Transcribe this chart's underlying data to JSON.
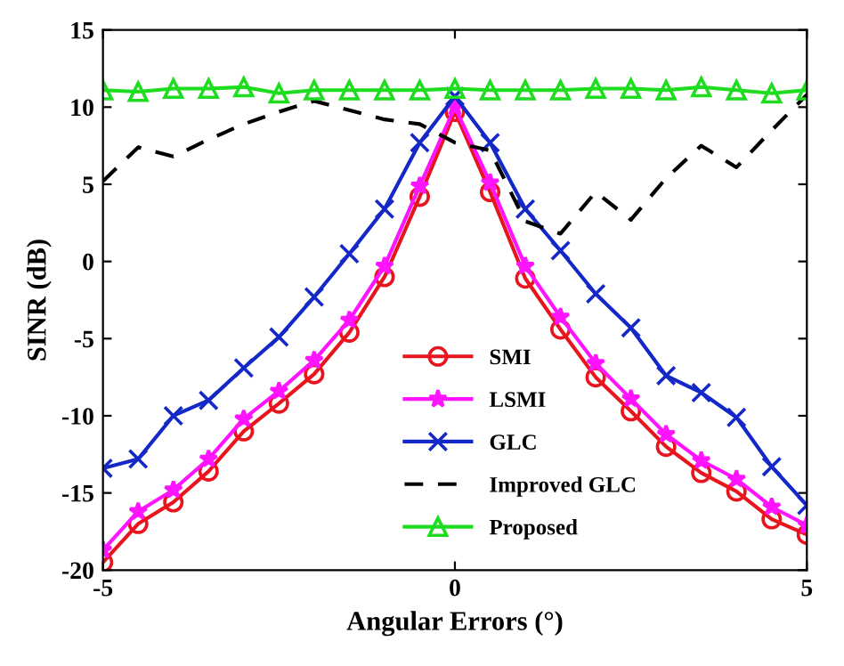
{
  "chart_data": {
    "type": "line",
    "xlabel": "Angular Errors (°)",
    "ylabel": "SINR (dB)",
    "x": [
      -5,
      -4.5,
      -4,
      -3.5,
      -3,
      -2.5,
      -2,
      -1.5,
      -1,
      -0.5,
      0,
      0.5,
      1,
      1.5,
      2,
      2.5,
      3,
      3.5,
      4,
      4.5,
      5
    ],
    "xlim": [
      -5,
      5
    ],
    "xticks": [
      -5,
      0,
      5
    ],
    "ylim": [
      -20,
      15
    ],
    "yticks": [
      -20,
      -15,
      -10,
      -5,
      0,
      5,
      10,
      15
    ],
    "grid": false,
    "legend": "bottom",
    "line_style": "solid",
    "series": [
      {
        "name": "SMI",
        "color": "#e8141e",
        "marker": "circle",
        "values": [
          -19.5,
          -17.0,
          -15.6,
          -13.6,
          -11.0,
          -9.2,
          -7.3,
          -4.6,
          -1.0,
          4.2,
          9.7,
          4.5,
          -1.1,
          -4.4,
          -7.5,
          -9.7,
          -12.0,
          -13.7,
          -14.9,
          -16.7,
          -17.7
        ]
      },
      {
        "name": "LSMI",
        "color": "#ff14ff",
        "marker": "star",
        "values": [
          -18.7,
          -16.2,
          -14.8,
          -12.8,
          -10.2,
          -8.4,
          -6.4,
          -3.8,
          -0.3,
          4.9,
          10.0,
          5.1,
          -0.3,
          -3.6,
          -6.6,
          -8.9,
          -11.2,
          -12.9,
          -14.1,
          -15.9,
          -17.1
        ]
      },
      {
        "name": "GLC",
        "color": "#1428c8",
        "marker": "cross",
        "values": [
          -13.4,
          -12.8,
          -10.0,
          -9.0,
          -6.9,
          -4.9,
          -2.3,
          0.5,
          3.4,
          7.7,
          10.7,
          7.7,
          3.4,
          0.7,
          -2.1,
          -4.3,
          -7.4,
          -8.5,
          -10.1,
          -13.3,
          -15.8
        ]
      },
      {
        "name": "Improved GLC",
        "color": "#000000",
        "marker": "none",
        "line_style": "dashed",
        "values": [
          5.2,
          7.4,
          6.8,
          7.9,
          8.9,
          9.7,
          10.4,
          9.8,
          9.2,
          8.9,
          7.7,
          7.2,
          2.6,
          1.8,
          4.5,
          2.7,
          5.4,
          7.5,
          6.1,
          8.5,
          10.8
        ]
      },
      {
        "name": "Proposed",
        "color": "#1edc1e",
        "marker": "triangle",
        "values": [
          11.1,
          11.0,
          11.2,
          11.2,
          11.3,
          10.9,
          11.1,
          11.1,
          11.1,
          11.1,
          11.2,
          11.1,
          11.1,
          11.1,
          11.2,
          11.2,
          11.1,
          11.3,
          11.1,
          10.9,
          11.1
        ]
      }
    ]
  }
}
